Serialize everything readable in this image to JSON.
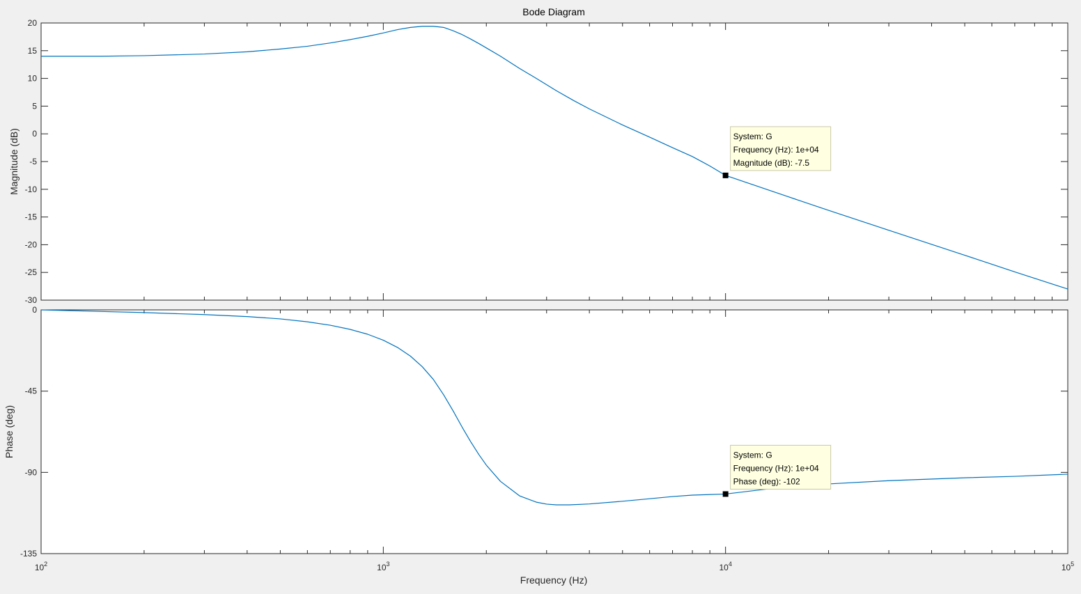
{
  "chart_data": {
    "type": "line",
    "title": "Bode Diagram",
    "xlabel": "Frequency  (Hz)",
    "x_scale": "log",
    "xlim": [
      100,
      100000
    ],
    "x_ticks": [
      100,
      1000,
      10000,
      100000
    ],
    "x_tick_labels": [
      {
        "base": "10",
        "exp": "2"
      },
      {
        "base": "10",
        "exp": "3"
      },
      {
        "base": "10",
        "exp": "4"
      },
      {
        "base": "10",
        "exp": "5"
      }
    ],
    "colors": {
      "line": "#0072bd",
      "axes_bg": "#ffffff",
      "figure_bg": "#f0f0f0",
      "axis": "#262626",
      "datatip_bg": "#ffffe1",
      "datatip_border": "#c8c8a8"
    },
    "panels": [
      {
        "name": "magnitude",
        "ylabel": "Magnitude (dB)",
        "ylim": [
          -30,
          20
        ],
        "y_ticks": [
          20,
          15,
          10,
          5,
          0,
          -5,
          -10,
          -15,
          -20,
          -25,
          -30
        ],
        "y_tick_labels": [
          "20",
          "15",
          "10",
          "5",
          "0",
          "-5",
          "-10",
          "-15",
          "-20",
          "-25",
          "-30"
        ],
        "series": [
          {
            "x": [
              100,
              150,
              200,
              300,
              400,
              500,
              600,
              700,
              800,
              900,
              1000,
              1100,
              1200,
              1300,
              1400,
              1500,
              1600,
              1700,
              1800,
              1900,
              2000,
              2200,
              2500,
              2800,
              3200,
              3600,
              4000,
              5000,
              6000,
              7000,
              8000,
              9000,
              10000,
              15000,
              20000,
              30000,
              50000,
              70000,
              100000
            ],
            "y": [
              14.0,
              14.0,
              14.1,
              14.4,
              14.8,
              15.3,
              15.8,
              16.4,
              17.0,
              17.6,
              18.2,
              18.8,
              19.2,
              19.4,
              19.4,
              19.2,
              18.6,
              17.9,
              17.1,
              16.3,
              15.5,
              14.0,
              11.8,
              10.0,
              7.8,
              6.0,
              4.5,
              1.6,
              -0.6,
              -2.5,
              -4.1,
              -5.8,
              -7.5,
              -11.2,
              -13.8,
              -17.4,
              -21.9,
              -24.9,
              -28.0
            ]
          }
        ],
        "datatip": {
          "x": 10000,
          "y": -7.5,
          "lines": [
            "System: G",
            "Frequency (Hz): 1e+04",
            "Magnitude (dB): -7.5"
          ]
        }
      },
      {
        "name": "phase",
        "ylabel": "Phase (deg)",
        "ylim": [
          -135,
          0
        ],
        "y_ticks": [
          0,
          -45,
          -90,
          -135
        ],
        "y_tick_labels": [
          "0",
          "-45",
          "-90",
          "-135"
        ],
        "series": [
          {
            "x": [
              100,
              200,
              300,
              400,
              500,
              600,
              700,
              800,
              900,
              1000,
              1100,
              1200,
              1300,
              1400,
              1500,
              1600,
              1700,
              1800,
              1900,
              2000,
              2200,
              2500,
              2800,
              3000,
              3200,
              3500,
              4000,
              5000,
              6000,
              7000,
              8000,
              10000,
              15000,
              20000,
              30000,
              50000,
              70000,
              100000
            ],
            "y": [
              0,
              -1.5,
              -2.6,
              -3.7,
              -5.0,
              -6.6,
              -8.5,
              -10.8,
              -13.5,
              -16.8,
              -20.8,
              -25.6,
              -31.5,
              -38.5,
              -47.0,
              -56.0,
              -65.0,
              -73.0,
              -80.0,
              -86.0,
              -95.0,
              -103.0,
              -106.5,
              -107.6,
              -108.0,
              -108.0,
              -107.5,
              -106.0,
              -104.6,
              -103.4,
              -102.6,
              -102.0,
              -98.0,
              -96.4,
              -94.6,
              -93.0,
              -92.2,
              -91.0
            ]
          }
        ],
        "datatip": {
          "x": 10000,
          "y": -102,
          "lines": [
            "System: G",
            "Frequency (Hz): 1e+04",
            "Phase (deg): -102"
          ]
        }
      }
    ]
  }
}
